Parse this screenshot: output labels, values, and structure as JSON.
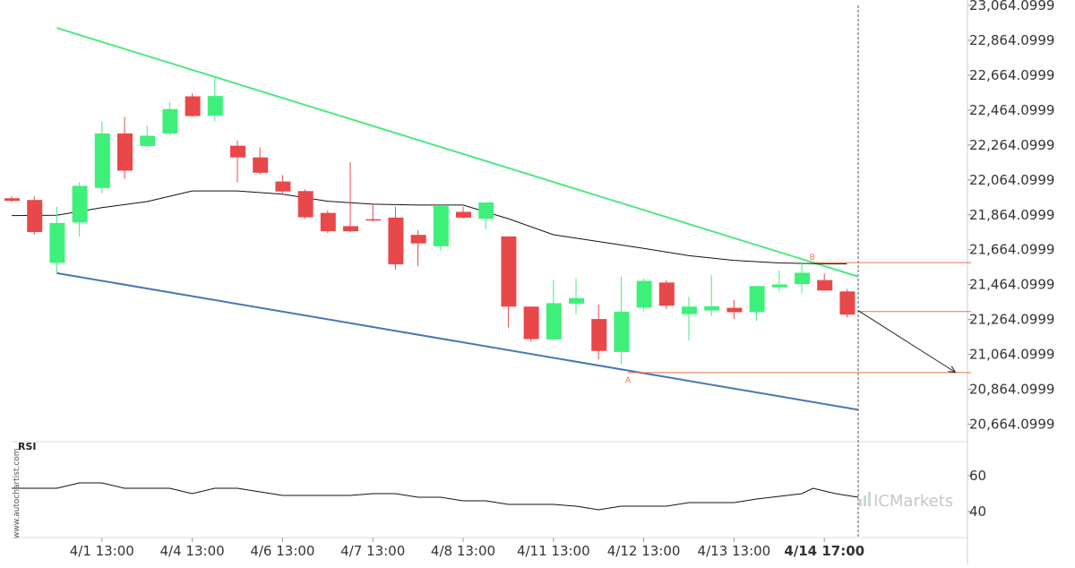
{
  "colors": {
    "bull": "#3ef07a",
    "bear": "#e8484a",
    "upper_trend": "#4ee884",
    "lower_trend": "#4677b4",
    "ma": "#111111",
    "level": "#e8734a",
    "grid": "#e6e6e6",
    "axis_text": "#333333"
  },
  "chart_data": [
    {
      "type": "candlestick",
      "ylim": [
        20564.0999,
        23064.0999
      ],
      "y_ticks": [
        "23,064.0999",
        "22,864.0999",
        "22,664.0999",
        "22,464.0999",
        "22,264.0999",
        "22,064.0999",
        "21,864.0999",
        "21,664.0999",
        "21,464.0999",
        "21,264.0999",
        "21,064.0999",
        "20,864.0999",
        "20,664.0999"
      ],
      "y_tick_values": [
        23064.0999,
        22864.0999,
        22664.0999,
        22464.0999,
        22264.0999,
        22064.0999,
        21864.0999,
        21664.0999,
        21464.0999,
        21264.0999,
        21064.0999,
        20864.0999,
        20664.0999
      ],
      "x_labels": [
        "4/1 13:00",
        "4/4 13:00",
        "4/6 13:00",
        "4/7 13:00",
        "4/8 13:00",
        "4/11 13:00",
        "4/12 13:00",
        "4/13 13:00",
        "4/14 17:00"
      ],
      "x_label_positions": [
        4,
        8,
        12,
        16,
        20,
        24,
        28,
        32,
        36
      ],
      "candles": [
        {
          "o": 21959,
          "h": 21972,
          "l": 21938,
          "c": 21944
        },
        {
          "o": 21949,
          "h": 21969,
          "l": 21750,
          "c": 21765
        },
        {
          "o": 21589,
          "h": 21910,
          "l": 21530,
          "c": 21817
        },
        {
          "o": 21820,
          "h": 22050,
          "l": 21740,
          "c": 22030
        },
        {
          "o": 22018,
          "h": 22400,
          "l": 21987,
          "c": 22330
        },
        {
          "o": 22330,
          "h": 22425,
          "l": 22070,
          "c": 22117
        },
        {
          "o": 22258,
          "h": 22375,
          "l": 22250,
          "c": 22317
        },
        {
          "o": 22330,
          "h": 22510,
          "l": 22320,
          "c": 22470
        },
        {
          "o": 22543,
          "h": 22560,
          "l": 22425,
          "c": 22430
        },
        {
          "o": 22432,
          "h": 22650,
          "l": 22400,
          "c": 22545
        },
        {
          "o": 22260,
          "h": 22290,
          "l": 22050,
          "c": 22193
        },
        {
          "o": 22193,
          "h": 22250,
          "l": 22095,
          "c": 22105
        },
        {
          "o": 22055,
          "h": 22092,
          "l": 21980,
          "c": 21998
        },
        {
          "o": 22000,
          "h": 22010,
          "l": 21840,
          "c": 21850
        },
        {
          "o": 21875,
          "h": 21890,
          "l": 21760,
          "c": 21770
        },
        {
          "o": 21799,
          "h": 22165,
          "l": 21765,
          "c": 21770
        },
        {
          "o": 21839,
          "h": 21930,
          "l": 21825,
          "c": 21832
        },
        {
          "o": 21848,
          "h": 21910,
          "l": 21550,
          "c": 21580
        },
        {
          "o": 21749,
          "h": 21776,
          "l": 21570,
          "c": 21700
        },
        {
          "o": 21684,
          "h": 21920,
          "l": 21660,
          "c": 21914
        },
        {
          "o": 21881,
          "h": 21910,
          "l": 21843,
          "c": 21848
        },
        {
          "o": 21841,
          "h": 21935,
          "l": 21783,
          "c": 21935
        },
        {
          "o": 21740,
          "h": 21740,
          "l": 21218,
          "c": 21338
        },
        {
          "o": 21338,
          "h": 21338,
          "l": 21138,
          "c": 21152
        },
        {
          "o": 21150,
          "h": 21490,
          "l": 21150,
          "c": 21358
        },
        {
          "o": 21355,
          "h": 21500,
          "l": 21296,
          "c": 21387
        },
        {
          "o": 21267,
          "h": 21350,
          "l": 21035,
          "c": 21084
        },
        {
          "o": 21078,
          "h": 21510,
          "l": 21007,
          "c": 21309
        },
        {
          "o": 21332,
          "h": 21500,
          "l": 21312,
          "c": 21486
        },
        {
          "o": 21476,
          "h": 21489,
          "l": 21325,
          "c": 21343
        },
        {
          "o": 21295,
          "h": 21395,
          "l": 21143,
          "c": 21338
        },
        {
          "o": 21316,
          "h": 21520,
          "l": 21285,
          "c": 21340
        },
        {
          "o": 21331,
          "h": 21375,
          "l": 21267,
          "c": 21306
        },
        {
          "o": 21307,
          "h": 21455,
          "l": 21255,
          "c": 21456
        },
        {
          "o": 21448,
          "h": 21545,
          "l": 21425,
          "c": 21465
        },
        {
          "o": 21467,
          "h": 21590,
          "l": 21413,
          "c": 21532
        },
        {
          "o": 21490,
          "h": 21525,
          "l": 21430,
          "c": 21430
        },
        {
          "o": 21425,
          "h": 21440,
          "l": 21275,
          "c": 21292
        }
      ],
      "moving_average": [
        {
          "i": 0,
          "v": 21860
        },
        {
          "i": 2,
          "v": 21862
        },
        {
          "i": 4,
          "v": 21905
        },
        {
          "i": 6,
          "v": 21940
        },
        {
          "i": 8,
          "v": 22001
        },
        {
          "i": 10,
          "v": 22001
        },
        {
          "i": 12,
          "v": 21982
        },
        {
          "i": 14,
          "v": 21942
        },
        {
          "i": 16,
          "v": 21925
        },
        {
          "i": 18,
          "v": 21920
        },
        {
          "i": 20,
          "v": 21920
        },
        {
          "i": 22,
          "v": 21842
        },
        {
          "i": 24,
          "v": 21750
        },
        {
          "i": 26,
          "v": 21711
        },
        {
          "i": 28,
          "v": 21672
        },
        {
          "i": 30,
          "v": 21630
        },
        {
          "i": 32,
          "v": 21603
        },
        {
          "i": 34,
          "v": 21588
        },
        {
          "i": 36,
          "v": 21583
        },
        {
          "i": 37,
          "v": 21583
        }
      ],
      "upper_trendline": [
        {
          "i": 2,
          "v": 22935
        },
        {
          "i": 37.5,
          "v": 21510
        }
      ],
      "lower_trendline": [
        {
          "i": 2,
          "v": 21530
        },
        {
          "i": 37.5,
          "v": 20747
        }
      ],
      "levels": [
        {
          "label": "B",
          "v": 21590,
          "from_i": 35.5,
          "to_i": 42.5
        },
        {
          "label": "",
          "v": 21310,
          "from_i": 37.5,
          "to_i": 42.5
        },
        {
          "label": "A",
          "v": 20960,
          "from_i": 27.3,
          "to_i": 42.5
        }
      ],
      "forecast_arrow": [
        {
          "i": 37.5,
          "v": 21315
        },
        {
          "i": 41.8,
          "v": 20962
        }
      ],
      "current_time_index": 37.5
    },
    {
      "type": "line",
      "title": "RSI",
      "y_ticks": [
        "60",
        "40"
      ],
      "y_tick_values": [
        60,
        40
      ],
      "ylim": [
        27,
        78
      ],
      "values": [
        53,
        53,
        53,
        56,
        56,
        53,
        53,
        53,
        50,
        53,
        53,
        51,
        49,
        49,
        49,
        49,
        50,
        50,
        48,
        48,
        46,
        46,
        44,
        44,
        44,
        43,
        41,
        43,
        43,
        43,
        45,
        45,
        45,
        47,
        50,
        53,
        50,
        48
      ],
      "x_index": [
        0,
        1,
        2,
        3,
        4,
        5,
        6,
        7,
        8,
        9,
        10,
        11,
        12,
        13,
        14,
        15,
        16,
        17,
        18,
        19,
        20,
        21,
        22,
        23,
        24,
        25,
        26,
        27,
        28,
        29,
        30,
        31,
        32,
        33,
        35,
        35.5,
        36.5,
        37.5
      ]
    }
  ],
  "watermark": {
    "side_text": "www.autochartist.com",
    "brand": "ICMarkets"
  }
}
